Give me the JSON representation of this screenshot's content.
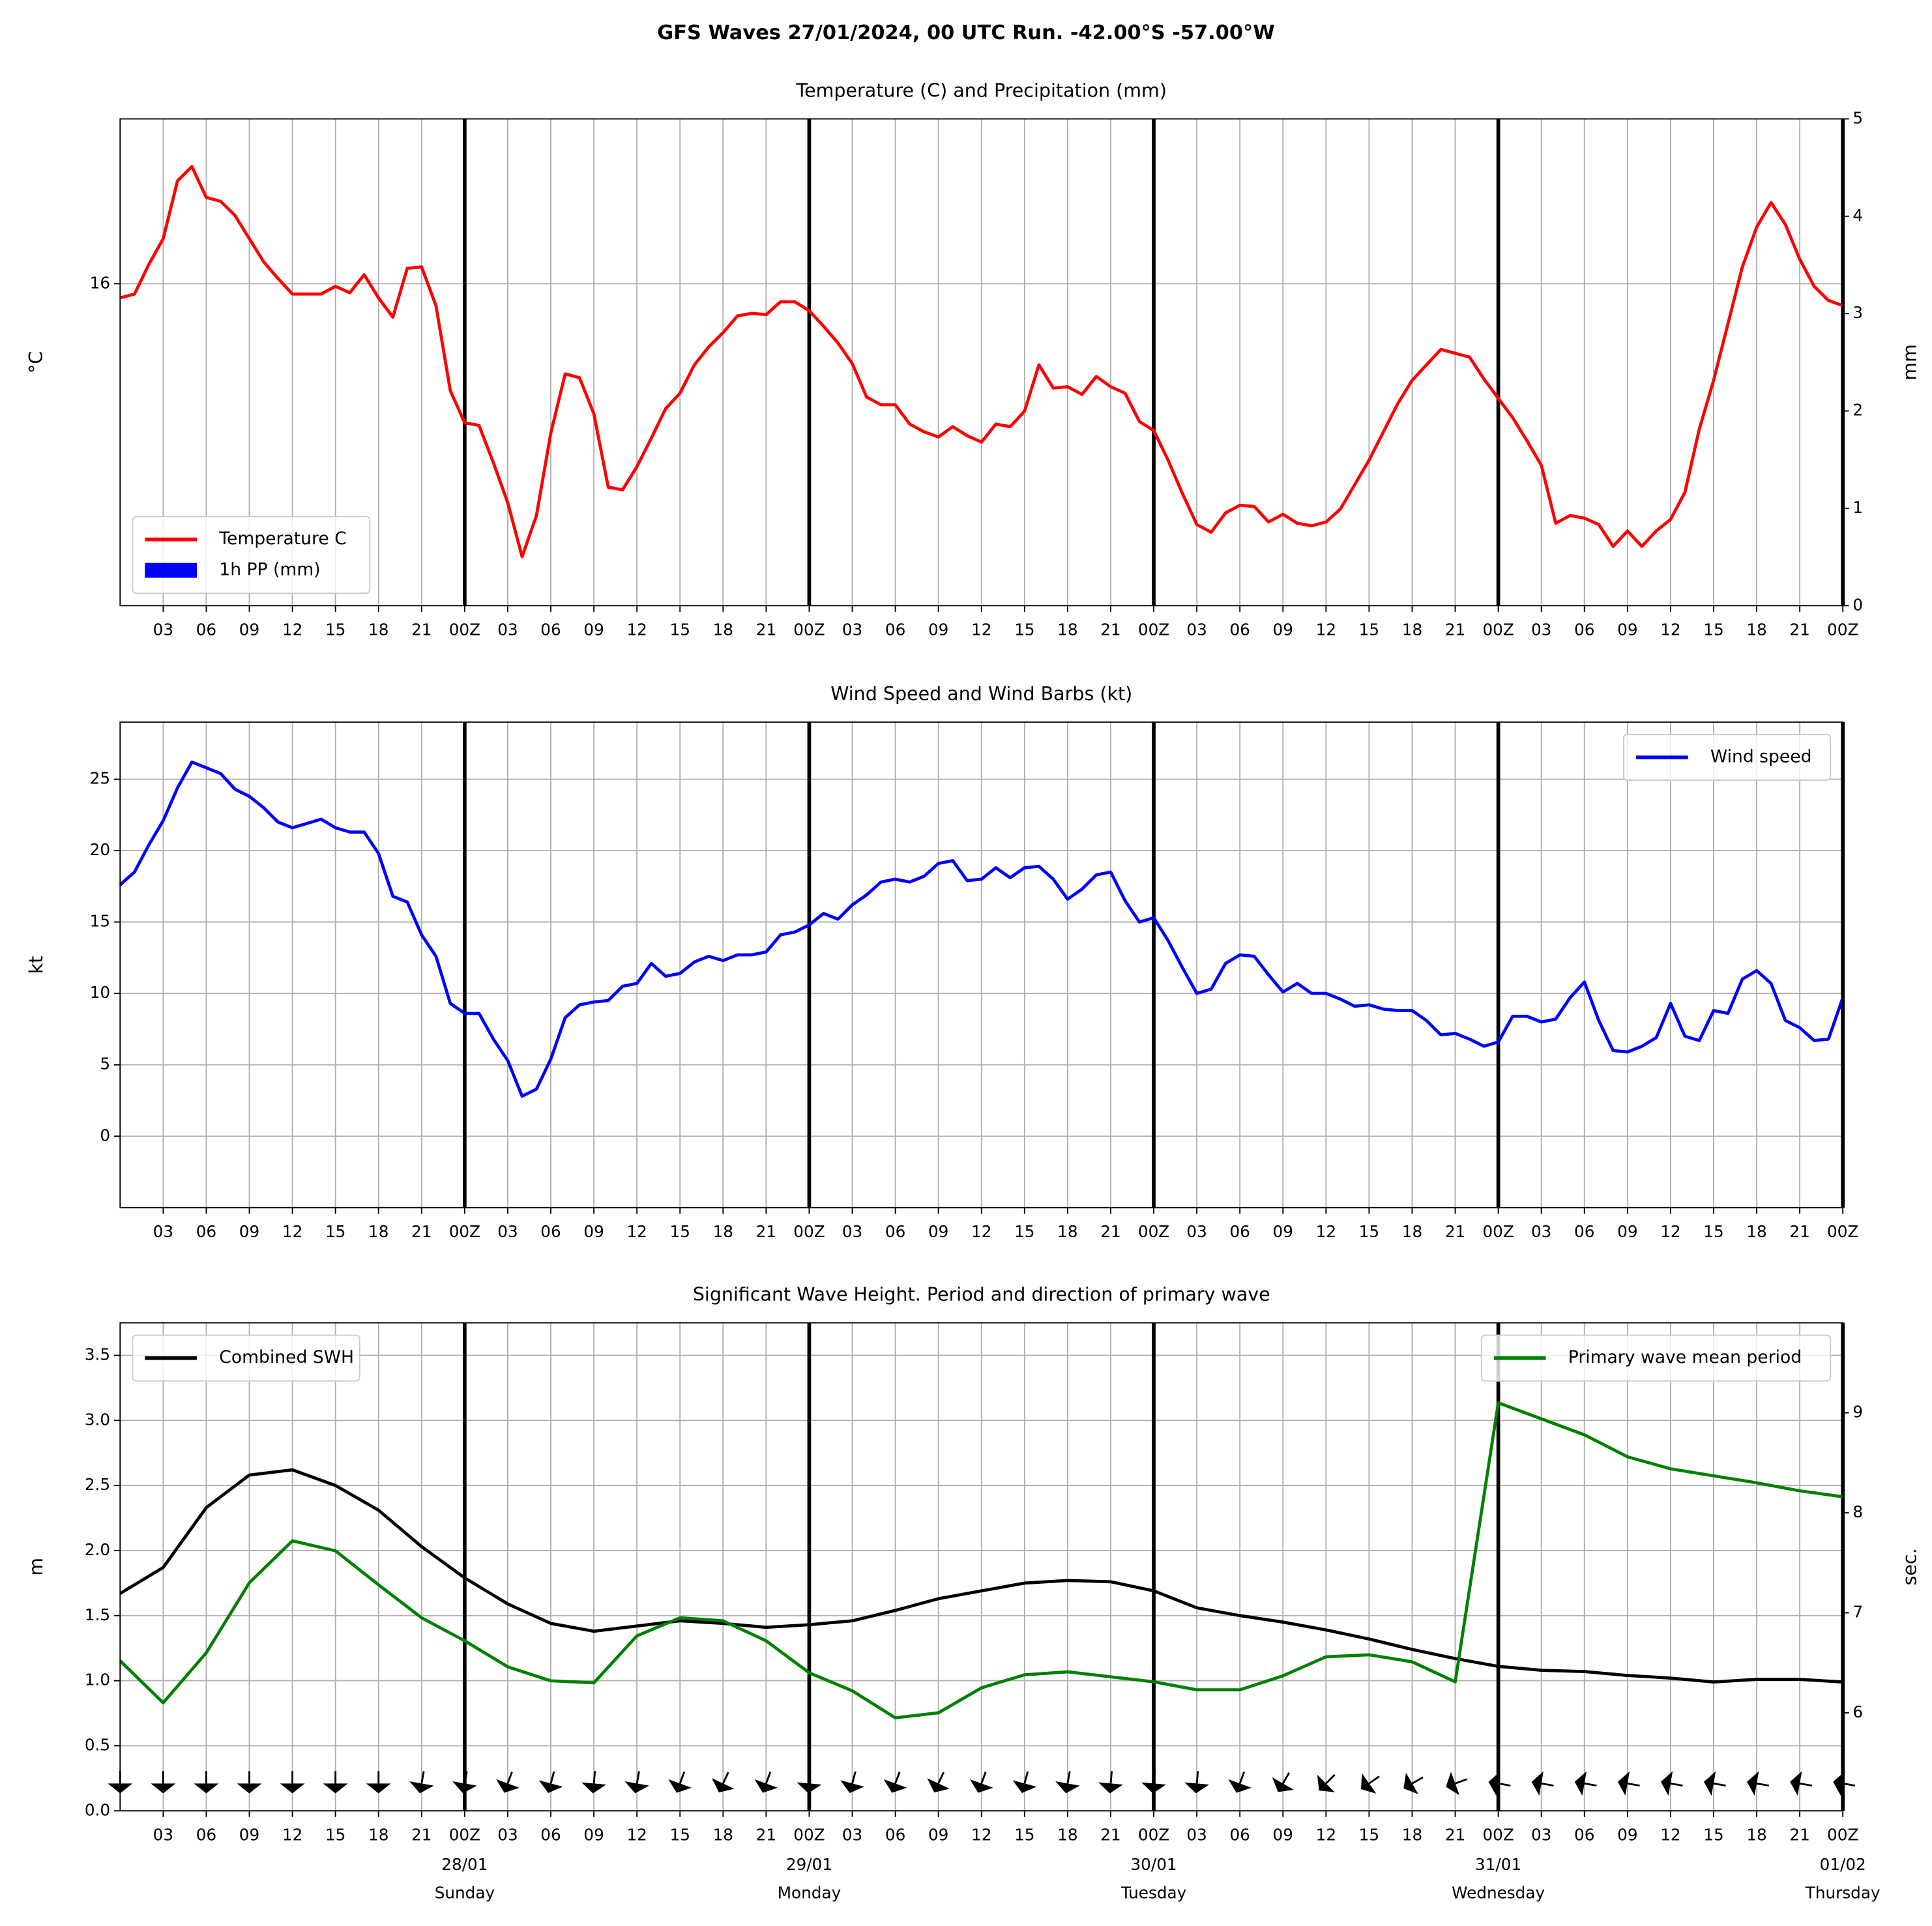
{
  "title": "GFS Waves 27/01/2024, 00 UTC Run. -42.00°S -57.00°W",
  "x_axis": {
    "xlim": [
      0,
      120
    ],
    "xticks": [
      {
        "value": 3,
        "label": "03"
      },
      {
        "value": 6,
        "label": "06"
      },
      {
        "value": 9,
        "label": "09"
      },
      {
        "value": 12,
        "label": "12"
      },
      {
        "value": 15,
        "label": "15"
      },
      {
        "value": 18,
        "label": "18"
      },
      {
        "value": 21,
        "label": "21"
      },
      {
        "value": 24,
        "label": "00Z"
      },
      {
        "value": 27,
        "label": "03"
      },
      {
        "value": 30,
        "label": "06"
      },
      {
        "value": 33,
        "label": "09"
      },
      {
        "value": 36,
        "label": "12"
      },
      {
        "value": 39,
        "label": "15"
      },
      {
        "value": 42,
        "label": "18"
      },
      {
        "value": 45,
        "label": "21"
      },
      {
        "value": 48,
        "label": "00Z"
      },
      {
        "value": 51,
        "label": "03"
      },
      {
        "value": 54,
        "label": "06"
      },
      {
        "value": 57,
        "label": "09"
      },
      {
        "value": 60,
        "label": "12"
      },
      {
        "value": 63,
        "label": "15"
      },
      {
        "value": 66,
        "label": "18"
      },
      {
        "value": 69,
        "label": "21"
      },
      {
        "value": 72,
        "label": "00Z"
      },
      {
        "value": 75,
        "label": "03"
      },
      {
        "value": 78,
        "label": "06"
      },
      {
        "value": 81,
        "label": "09"
      },
      {
        "value": 84,
        "label": "12"
      },
      {
        "value": 87,
        "label": "15"
      },
      {
        "value": 90,
        "label": "18"
      },
      {
        "value": 93,
        "label": "21"
      },
      {
        "value": 96,
        "label": "00Z"
      },
      {
        "value": 99,
        "label": "03"
      },
      {
        "value": 102,
        "label": "06"
      },
      {
        "value": 105,
        "label": "09"
      },
      {
        "value": 108,
        "label": "12"
      },
      {
        "value": 111,
        "label": "15"
      },
      {
        "value": 114,
        "label": "18"
      },
      {
        "value": 117,
        "label": "21"
      },
      {
        "value": 120,
        "label": "00Z"
      }
    ],
    "day_lines": [
      24,
      48,
      72,
      96,
      120
    ]
  },
  "chart_data": [
    {
      "type": "line",
      "title": "Temperature (C) and Precipitation (mm)",
      "ylabel": "°C",
      "y2label": "mm",
      "ylim": [
        13.5,
        17.28
      ],
      "yticks": [
        16
      ],
      "y2lim": [
        0,
        5
      ],
      "y2ticks": [
        0,
        1,
        2,
        3,
        4,
        5
      ],
      "grid": true,
      "legend": "lower left",
      "x": [
        0,
        1,
        2,
        3,
        4,
        5,
        6,
        7,
        8,
        9,
        10,
        11,
        12,
        13,
        14,
        15,
        16,
        17,
        18,
        19,
        20,
        21,
        22,
        23,
        24,
        25,
        26,
        27,
        28,
        29,
        30,
        31,
        32,
        33,
        34,
        35,
        36,
        37,
        38,
        39,
        40,
        41,
        42,
        43,
        44,
        45,
        46,
        47,
        48,
        49,
        50,
        51,
        52,
        53,
        54,
        55,
        56,
        57,
        58,
        59,
        60,
        61,
        62,
        63,
        64,
        65,
        66,
        67,
        68,
        69,
        70,
        71,
        72,
        73,
        74,
        75,
        76,
        77,
        78,
        79,
        80,
        81,
        82,
        83,
        84,
        85,
        86,
        87,
        88,
        89,
        90,
        91,
        92,
        93,
        94,
        95,
        96,
        97,
        98,
        99,
        100,
        101,
        102,
        103,
        104,
        105,
        106,
        107,
        108,
        109,
        110,
        111,
        112,
        113,
        114,
        115,
        116,
        117,
        118,
        119,
        120
      ],
      "series": [
        {
          "name": "Temperature C",
          "color": "#ff0000",
          "values": [
            15.89,
            15.92,
            16.15,
            16.35,
            16.8,
            16.91,
            16.67,
            16.64,
            16.53,
            16.35,
            16.17,
            16.04,
            15.92,
            15.92,
            15.92,
            15.98,
            15.93,
            16.07,
            15.89,
            15.74,
            16.12,
            16.13,
            15.83,
            15.17,
            14.92,
            14.9,
            14.61,
            14.3,
            13.88,
            14.2,
            14.84,
            15.3,
            15.27,
            14.99,
            14.42,
            14.4,
            14.58,
            14.8,
            15.03,
            15.15,
            15.37,
            15.51,
            15.62,
            15.75,
            15.77,
            15.76,
            15.86,
            15.86,
            15.79,
            15.67,
            15.54,
            15.38,
            15.12,
            15.06,
            15.06,
            14.91,
            14.85,
            14.81,
            14.89,
            14.82,
            14.77,
            14.91,
            14.89,
            15.01,
            15.37,
            15.19,
            15.2,
            15.14,
            15.28,
            15.2,
            15.15,
            14.93,
            14.86,
            14.63,
            14.37,
            14.13,
            14.07,
            14.22,
            14.28,
            14.27,
            14.15,
            14.21,
            14.14,
            14.12,
            14.15,
            14.25,
            14.44,
            14.63,
            14.85,
            15.07,
            15.25,
            15.37,
            15.49,
            15.46,
            15.43,
            15.26,
            15.11,
            14.96,
            14.78,
            14.59,
            14.14,
            14.2,
            14.18,
            14.13,
            13.96,
            14.08,
            13.96,
            14.08,
            14.17,
            14.38,
            14.87,
            15.25,
            15.69,
            16.13,
            16.44,
            16.63,
            16.46,
            16.19,
            15.98,
            15.87,
            15.83
          ]
        },
        {
          "name": "1h PP (mm)",
          "color": "#0000ff",
          "type": "bar",
          "axis": "y2",
          "values": [
            0,
            0,
            0,
            0,
            0,
            0,
            0,
            0,
            0,
            0,
            0,
            0,
            0,
            0,
            0,
            0,
            0,
            0,
            0,
            0,
            0,
            0,
            0,
            0,
            0,
            0,
            0,
            0,
            0,
            0,
            0,
            0,
            0,
            0,
            0,
            0,
            0,
            0,
            0,
            0,
            0,
            0,
            0,
            0,
            0,
            0,
            0,
            0,
            0,
            0,
            0,
            0,
            0,
            0,
            0,
            0,
            0,
            0,
            0,
            0,
            0,
            0,
            0,
            0,
            0,
            0,
            0,
            0,
            0,
            0,
            0,
            0,
            0,
            0,
            0,
            0,
            0,
            0,
            0,
            0,
            0,
            0,
            0,
            0,
            0,
            0,
            0,
            0,
            0,
            0,
            0,
            0,
            0,
            0,
            0,
            0,
            0,
            0,
            0,
            0,
            0,
            0,
            0,
            0,
            0,
            0,
            0,
            0,
            0,
            0,
            0,
            0,
            0,
            0,
            0,
            0,
            0,
            0,
            0,
            0,
            0
          ]
        }
      ]
    },
    {
      "type": "line",
      "title": "Wind Speed and Wind Barbs (kt)",
      "ylabel": "kt",
      "ylim": [
        -5,
        29
      ],
      "yticks": [
        0,
        5,
        10,
        15,
        20,
        25
      ],
      "grid": true,
      "legend": "upper right",
      "x": [
        0,
        1,
        2,
        3,
        4,
        5,
        6,
        7,
        8,
        9,
        10,
        11,
        12,
        13,
        14,
        15,
        16,
        17,
        18,
        19,
        20,
        21,
        22,
        23,
        24,
        25,
        26,
        27,
        28,
        29,
        30,
        31,
        32,
        33,
        34,
        35,
        36,
        37,
        38,
        39,
        40,
        41,
        42,
        43,
        44,
        45,
        46,
        47,
        48,
        49,
        50,
        51,
        52,
        53,
        54,
        55,
        56,
        57,
        58,
        59,
        60,
        61,
        62,
        63,
        64,
        65,
        66,
        67,
        68,
        69,
        70,
        71,
        72,
        73,
        74,
        75,
        76,
        77,
        78,
        79,
        80,
        81,
        82,
        83,
        84,
        85,
        86,
        87,
        88,
        89,
        90,
        91,
        92,
        93,
        94,
        95,
        96,
        97,
        98,
        99,
        100,
        101,
        102,
        103,
        104,
        105,
        106,
        107,
        108,
        109,
        110,
        111,
        112,
        113,
        114,
        115,
        116,
        117,
        118,
        119,
        120
      ],
      "series": [
        {
          "name": "Wind speed",
          "color": "#0000ff",
          "values": [
            17.6,
            18.5,
            20.4,
            22.1,
            24.4,
            26.2,
            25.8,
            25.4,
            24.3,
            23.8,
            23.0,
            22.0,
            21.6,
            21.9,
            22.2,
            21.6,
            21.3,
            21.3,
            19.8,
            16.8,
            16.4,
            14.1,
            12.6,
            9.3,
            8.6,
            8.6,
            6.8,
            5.3,
            2.8,
            3.3,
            5.4,
            8.3,
            9.2,
            9.4,
            9.5,
            10.5,
            10.7,
            12.1,
            11.2,
            11.4,
            12.2,
            12.6,
            12.3,
            12.7,
            12.7,
            12.9,
            14.1,
            14.3,
            14.8,
            15.6,
            15.2,
            16.2,
            16.9,
            17.8,
            18.0,
            17.8,
            18.2,
            19.1,
            19.3,
            17.9,
            18.0,
            18.8,
            18.1,
            18.8,
            18.9,
            18.0,
            16.6,
            17.3,
            18.3,
            18.5,
            16.5,
            15.0,
            15.3,
            13.7,
            11.8,
            10.0,
            10.3,
            12.1,
            12.7,
            12.6,
            11.3,
            10.1,
            10.7,
            10.0,
            10.0,
            9.6,
            9.1,
            9.2,
            8.9,
            8.8,
            8.8,
            8.1,
            7.1,
            7.2,
            6.8,
            6.3,
            6.6,
            8.4,
            8.4,
            8.0,
            8.2,
            9.7,
            10.8,
            8.1,
            6.0,
            5.9,
            6.3,
            6.9,
            9.3,
            7.0,
            6.7,
            8.8,
            8.6,
            11.0,
            11.6,
            10.7,
            8.1,
            7.6,
            6.7,
            6.8,
            9.7
          ]
        }
      ]
    },
    {
      "type": "line",
      "title": "Significant Wave Height. Period and direction of primary wave",
      "ylabel": "m",
      "y2label": "sec.",
      "ylim": [
        0,
        3.75
      ],
      "yticks": [
        {
          "value": 0,
          "label": "0.0"
        },
        0.5,
        {
          "value": 1,
          "label": "1.0"
        },
        1.5,
        {
          "value": 2,
          "label": "2.0"
        },
        2.5,
        {
          "value": 3,
          "label": "3.0"
        },
        3.5
      ],
      "y2lim": [
        5.02,
        9.9
      ],
      "y2ticks": [
        6,
        7,
        8,
        9
      ],
      "grid": true,
      "x": [
        0,
        3,
        6,
        9,
        12,
        15,
        18,
        21,
        24,
        27,
        30,
        33,
        36,
        39,
        42,
        45,
        48,
        51,
        54,
        57,
        60,
        63,
        66,
        69,
        72,
        75,
        78,
        81,
        84,
        87,
        90,
        93,
        96,
        99,
        102,
        105,
        108,
        111,
        114,
        117,
        120
      ],
      "series": [
        {
          "name": "Combined SWH",
          "color": "#000000",
          "legend": "upper left",
          "values": [
            1.67,
            1.87,
            2.33,
            2.58,
            2.62,
            2.5,
            2.31,
            2.03,
            1.79,
            1.59,
            1.44,
            1.38,
            1.42,
            1.46,
            1.44,
            1.41,
            1.43,
            1.46,
            1.54,
            1.63,
            1.69,
            1.75,
            1.77,
            1.76,
            1.69,
            1.56,
            1.5,
            1.45,
            1.39,
            1.32,
            1.24,
            1.17,
            1.11,
            1.08,
            1.07,
            1.04,
            1.02,
            0.99,
            1.01,
            1.01,
            0.99
          ]
        },
        {
          "name": "Primary wave mean period",
          "color": "#008000",
          "axis": "y2",
          "legend": "upper right",
          "values": [
            6.52,
            6.1,
            6.6,
            7.3,
            7.72,
            7.62,
            7.28,
            6.95,
            6.72,
            6.46,
            6.32,
            6.3,
            6.77,
            6.95,
            6.92,
            6.72,
            6.4,
            6.22,
            5.95,
            6.0,
            6.25,
            6.38,
            6.41,
            6.36,
            6.31,
            6.23,
            6.23,
            6.37,
            6.56,
            6.58,
            6.51,
            6.31,
            9.1,
            8.94,
            8.78,
            8.56,
            8.44,
            8.37,
            8.3,
            8.22,
            8.16
          ]
        }
      ],
      "wave_direction": [
        0,
        0,
        0,
        0,
        0,
        0,
        0,
        10,
        10,
        20,
        15,
        5,
        10,
        20,
        25,
        20,
        5,
        15,
        20,
        25,
        20,
        15,
        10,
        5,
        5,
        5,
        20,
        30,
        45,
        55,
        60,
        70,
        100,
        100,
        100,
        100,
        100,
        100,
        100,
        100,
        100
      ],
      "date_labels": [
        {
          "value": 24,
          "label": "28/01",
          "day": "Sunday"
        },
        {
          "value": 48,
          "label": "29/01",
          "day": "Monday"
        },
        {
          "value": 72,
          "label": "30/01",
          "day": "Tuesday"
        },
        {
          "value": 96,
          "label": "31/01",
          "day": "Wednesday"
        },
        {
          "value": 120,
          "label": "01/02",
          "day": "Thursday"
        }
      ]
    }
  ]
}
